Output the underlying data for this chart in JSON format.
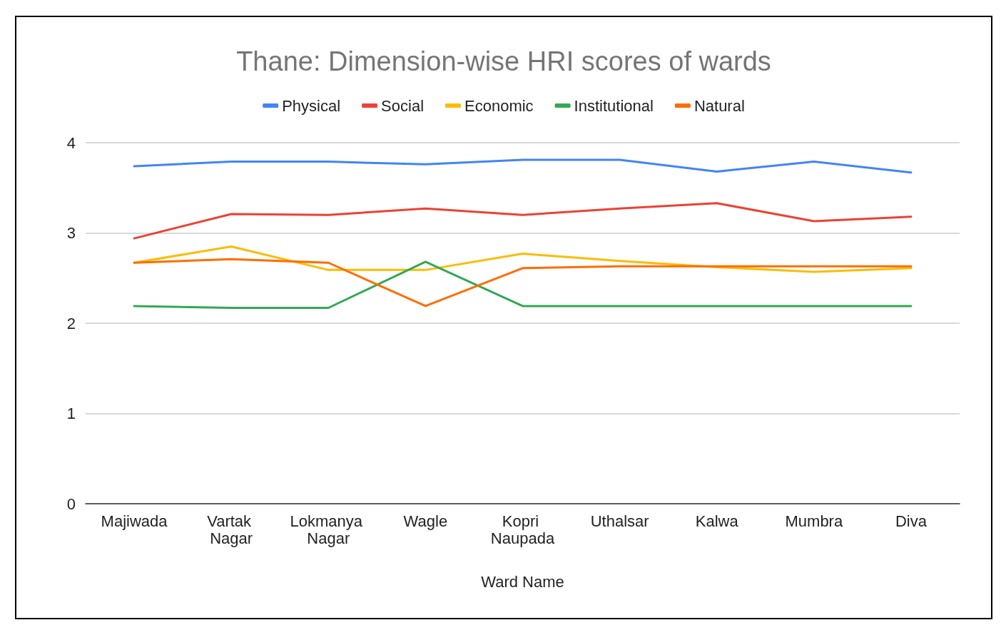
{
  "chart_data": {
    "type": "line",
    "title": "Thane: Dimension-wise HRI scores of wards",
    "xlabel": "Ward Name",
    "categories": [
      "Majiwada",
      "Vartak Nagar",
      "Lokmanya Nagar",
      "Wagle",
      "Kopri Naupada",
      "Uthalsar",
      "Kalwa",
      "Mumbra",
      "Diva"
    ],
    "series": [
      {
        "name": "Physical",
        "color": "#4285f4",
        "values": [
          3.74,
          3.79,
          3.79,
          3.76,
          3.81,
          3.81,
          3.68,
          3.79,
          3.67
        ]
      },
      {
        "name": "Social",
        "color": "#ea4335",
        "values": [
          2.94,
          3.21,
          3.2,
          3.27,
          3.2,
          3.27,
          3.33,
          3.13,
          3.18
        ]
      },
      {
        "name": "Economic",
        "color": "#fbbc04",
        "values": [
          2.67,
          2.85,
          2.59,
          2.59,
          2.77,
          2.69,
          2.62,
          2.57,
          2.61
        ]
      },
      {
        "name": "Institutional",
        "color": "#34a853",
        "values": [
          2.19,
          2.17,
          2.17,
          2.68,
          2.19,
          2.19,
          2.19,
          2.19,
          2.19
        ]
      },
      {
        "name": "Natural",
        "color": "#ff6d01",
        "values": [
          2.67,
          2.71,
          2.67,
          2.19,
          2.61,
          2.63,
          2.63,
          2.63,
          2.63
        ]
      }
    ],
    "ylim": [
      0,
      4
    ],
    "yticks": [
      0,
      1,
      2,
      3,
      4
    ],
    "grid": "y",
    "legend": "top",
    "marker": "none",
    "line_style": "solid"
  }
}
